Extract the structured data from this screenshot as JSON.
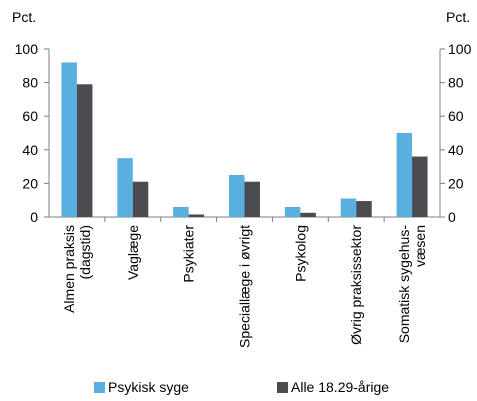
{
  "chart_data": {
    "type": "bar",
    "unit_left": "Pct.",
    "unit_right": "Pct.",
    "ylim": [
      0,
      100
    ],
    "yticks": [
      0,
      20,
      40,
      60,
      80,
      100
    ],
    "categories": [
      [
        "Almen praksis",
        "(dagstid)"
      ],
      [
        "Vaglæge"
      ],
      [
        "Psykiater"
      ],
      [
        "Speciallæge i øvrigt"
      ],
      [
        "Psykolog"
      ],
      [
        "Øvrig praksissektor"
      ],
      [
        "Somatisk sygehus-",
        "væsen"
      ]
    ],
    "series": [
      {
        "name": "Psykisk syge",
        "color": "#5aafe1",
        "values": [
          92,
          35,
          6,
          25,
          6,
          11,
          50
        ]
      },
      {
        "name": "Alle 18.29-årige",
        "color": "#4a4c51",
        "values": [
          79,
          21,
          1.5,
          21,
          2.5,
          9.5,
          36
        ]
      }
    ],
    "grid": false,
    "legend_position": "bottom"
  }
}
